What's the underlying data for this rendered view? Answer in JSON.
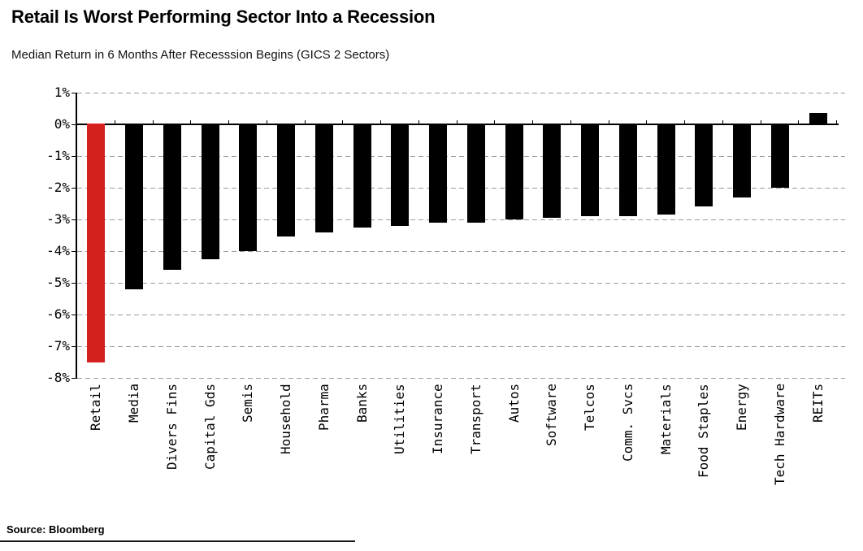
{
  "chart_data": {
    "type": "bar",
    "title": "Retail Is Worst Performing Sector Into a Recession",
    "subtitle": "Median Return in 6 Months After Recesssion Begins (GICS 2 Sectors)",
    "source": "Source: Bloomberg",
    "unit": "%",
    "categories": [
      "Retail",
      "Media",
      "Divers Fins",
      "Capital Gds",
      "Semis",
      "Household",
      "Pharma",
      "Banks",
      "Utilities",
      "Insurance",
      "Transport",
      "Autos",
      "Software",
      "Telcos",
      "Comm. Svcs",
      "Materials",
      "Food Staples",
      "Energy",
      "Tech Hardware",
      "REITs"
    ],
    "values": [
      -7.5,
      -5.2,
      -4.6,
      -4.25,
      -4.0,
      -3.55,
      -3.4,
      -3.25,
      -3.2,
      -3.1,
      -3.1,
      -3.0,
      -2.95,
      -2.9,
      -2.9,
      -2.85,
      -2.6,
      -2.3,
      -2.0,
      0.35
    ],
    "bar_color": "#000000",
    "highlight": {
      "category": "Retail",
      "color": "#d42120"
    },
    "ylim": [
      -8,
      1
    ],
    "ytick_labels": [
      "1%",
      "0%",
      "-1%",
      "-2%",
      "-3%",
      "-4%",
      "-5%",
      "-6%",
      "-7%",
      "-8%"
    ],
    "ytick_values": [
      1,
      0,
      -1,
      -2,
      -3,
      -4,
      -5,
      -6,
      -7,
      -8
    ],
    "grid": {
      "orientation": "horizontal",
      "style": "dashed",
      "color": "#9b9b9b"
    },
    "legend": "none",
    "xlabel": "",
    "ylabel": "",
    "xlabel_rotation": 90
  }
}
